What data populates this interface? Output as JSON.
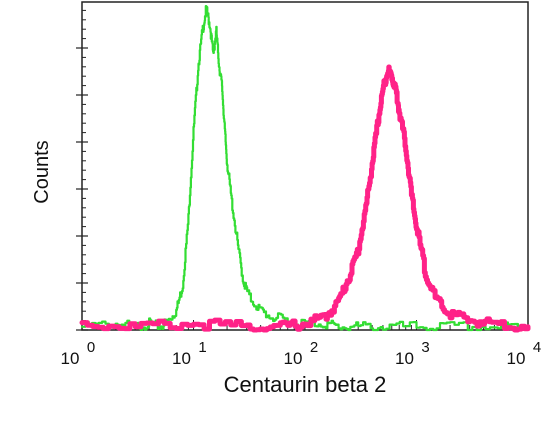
{
  "chart_data": {
    "type": "line",
    "title": "",
    "xlabel": "Centaurin beta 2",
    "ylabel": "Counts",
    "x_scale": "log",
    "xlim": [
      1,
      10000
    ],
    "ylim": [
      0,
      100
    ],
    "grid": false,
    "legend": "none",
    "x_tick_labels": [
      {
        "base": "10",
        "exp": "0",
        "value": 1
      },
      {
        "base": "10",
        "exp": "1",
        "value": 10
      },
      {
        "base": "10",
        "exp": "2",
        "value": 100
      },
      {
        "base": "10",
        "exp": "3",
        "value": 1000
      },
      {
        "base": "10",
        "exp": "4",
        "value": 10000
      }
    ],
    "series": [
      {
        "color": "#33dd33",
        "x": [
          1,
          2,
          3,
          4,
          5,
          6,
          7,
          8,
          9,
          10,
          11,
          12,
          13,
          14,
          15,
          16,
          17,
          18,
          19,
          20,
          22,
          25,
          28,
          32,
          40,
          50,
          70,
          100,
          150,
          200,
          300,
          500,
          1000,
          2000,
          5000,
          10000
        ],
        "y": [
          1,
          2,
          1,
          2,
          1,
          3,
          6,
          14,
          35,
          62,
          82,
          93,
          100,
          95,
          86,
          93,
          82,
          76,
          63,
          52,
          40,
          26,
          15,
          10,
          6,
          4,
          3,
          2,
          2,
          1,
          1,
          1,
          1,
          1,
          1,
          1
        ]
      },
      {
        "color": "#ff2288",
        "x": [
          1,
          3,
          10,
          30,
          60,
          100,
          150,
          200,
          250,
          300,
          350,
          400,
          450,
          500,
          550,
          600,
          650,
          700,
          800,
          900,
          1000,
          1200,
          1500,
          2000,
          3000,
          5000,
          10000
        ],
        "y": [
          2,
          1,
          2,
          1,
          1,
          2,
          4,
          9,
          17,
          25,
          38,
          52,
          65,
          75,
          81,
          79,
          75,
          68,
          57,
          42,
          32,
          18,
          9,
          5,
          3,
          2,
          1
        ]
      }
    ]
  }
}
